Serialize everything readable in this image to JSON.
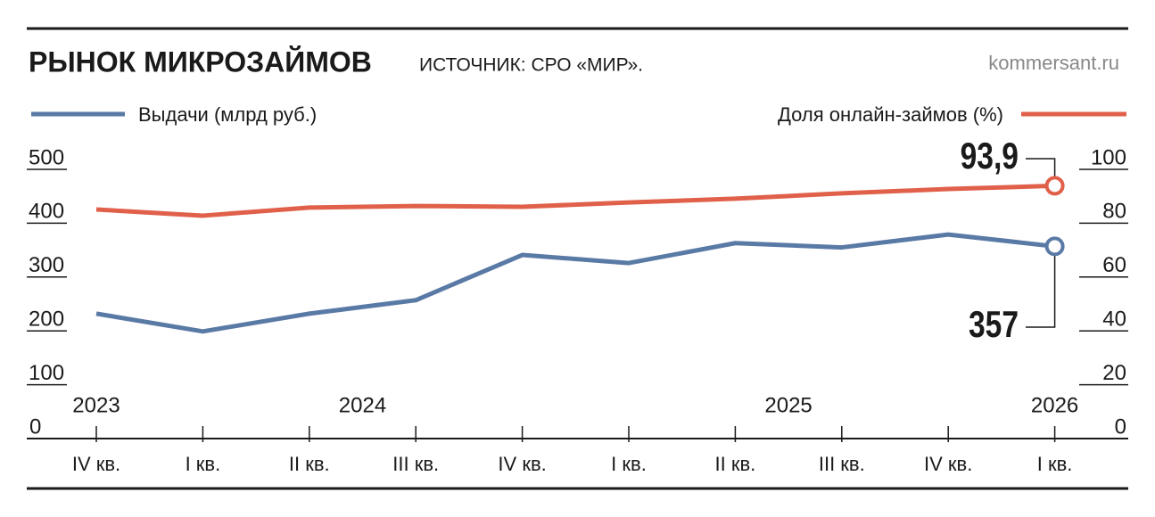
{
  "chart_data": {
    "type": "line",
    "title": "РЫНОК МИКРОЗАЙМОВ",
    "subtitle": "ИСТОЧНИК: СРО «МИР».",
    "source": "kommersant.ru",
    "categories": [
      "IV кв.",
      "I кв.",
      "II кв.",
      "III кв.",
      "IV кв.",
      "I кв.",
      "II кв.",
      "III кв.",
      "IV кв.",
      "I кв."
    ],
    "x_groups": [
      "2023",
      "2024",
      "2025",
      "2026"
    ],
    "series": [
      {
        "name": "Выдачи (млрд руб.)",
        "color": "#5a7aa6",
        "axis": "y",
        "values": [
          232,
          199,
          232,
          257,
          341,
          326,
          363,
          355,
          379,
          357
        ]
      },
      {
        "name": "Доля онлайн-займов (%)",
        "color": "#e0604a",
        "axis": "y2",
        "values": [
          85.1,
          82.8,
          85.8,
          86.4,
          86.1,
          87.7,
          89.1,
          91.1,
          92.7,
          93.9
        ],
        "value_labels": [
          null,
          null,
          null,
          null,
          null,
          null,
          null,
          null,
          null,
          "93,9"
        ]
      }
    ],
    "ylim": [
      0,
      500
    ],
    "yticks": [
      0,
      100,
      200,
      300,
      400,
      500
    ],
    "y2lim": [
      0,
      100
    ],
    "y2ticks": [
      0,
      20,
      40,
      60,
      80,
      100
    ]
  }
}
